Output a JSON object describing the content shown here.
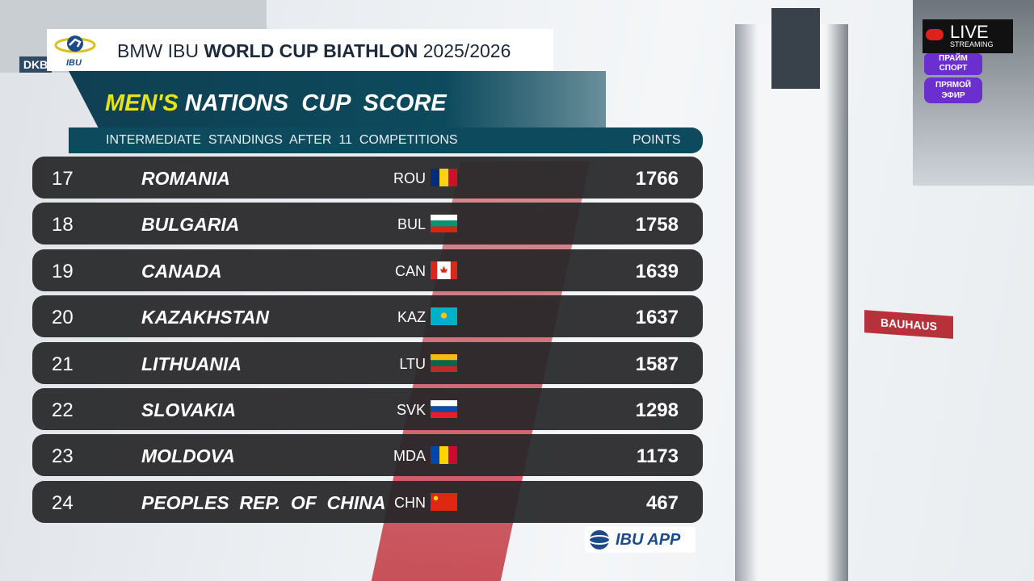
{
  "header": {
    "logo": "IBU",
    "title_parts": [
      "BMW IBU ",
      "WORLD CUP BIATHLON",
      " 2025/2026"
    ]
  },
  "heading": {
    "highlight": "MEN'S",
    "rest": "NATIONS  CUP  SCORE"
  },
  "subheading": "INTERMEDIATE  STANDINGS  AFTER  11  COMPETITIONS",
  "points_header": "POINTS",
  "table": {
    "rows": [
      [
        17,
        "ROMANIA",
        "ROU",
        1766
      ],
      [
        18,
        "BULGARIA",
        "BUL",
        1758
      ],
      [
        19,
        "CANADA",
        "CAN",
        1639
      ],
      [
        20,
        "KAZAKHSTAN",
        "KAZ",
        1637
      ],
      [
        21,
        "LITHUANIA",
        "LTU",
        1587
      ],
      [
        22,
        "SLOVAKIA",
        "SVK",
        1298
      ],
      [
        23,
        "MOLDOVA",
        "MDA",
        1173
      ],
      [
        24,
        "PEOPLES  REP.  OF  CHINA",
        "CHN",
        467
      ]
    ]
  },
  "app_badge": "IBU APP",
  "live": {
    "title": "LIVE",
    "sub": "STREAMING"
  },
  "channel": {
    "name": "ПРАЙМ СПОРТ",
    "badge": "ПРЯМОЙ ЭФИР"
  },
  "background": {
    "sign_left": "DKB",
    "sign_right": "BAUHAUS"
  }
}
